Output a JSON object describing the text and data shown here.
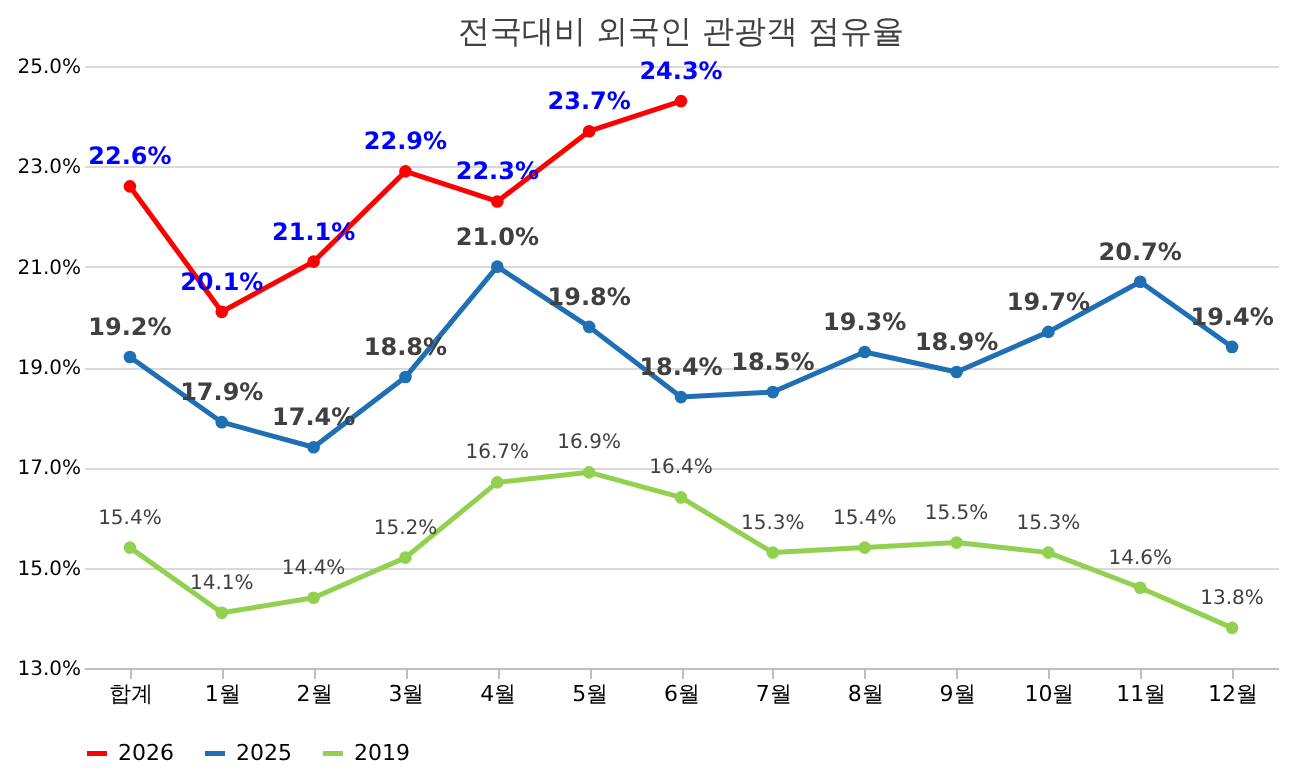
{
  "chart_data": {
    "type": "line",
    "title": "전국대비 외국인 관광객 점유율",
    "categories": [
      "합계",
      "1월",
      "2월",
      "3월",
      "4월",
      "5월",
      "6월",
      "7월",
      "8월",
      "9월",
      "10월",
      "11월",
      "12월"
    ],
    "series": [
      {
        "name": "2026",
        "color": "#ff0000",
        "values": [
          22.6,
          20.1,
          21.1,
          22.9,
          22.3,
          23.7,
          24.3,
          null,
          null,
          null,
          null,
          null,
          null
        ],
        "value_labels": [
          "22.6%",
          "20.1%",
          "21.1%",
          "22.9%",
          "22.3%",
          "23.7%",
          "24.3%",
          null,
          null,
          null,
          null,
          null,
          null
        ]
      },
      {
        "name": "2025",
        "color": "#1f6fb5",
        "values": [
          19.2,
          17.9,
          17.4,
          18.8,
          21.0,
          19.8,
          18.4,
          18.5,
          19.3,
          18.9,
          19.7,
          20.7,
          19.4
        ],
        "value_labels": [
          "19.2%",
          "17.9%",
          "17.4%",
          "18.8%",
          "21.0%",
          "19.8%",
          "18.4%",
          "18.5%",
          "19.3%",
          "18.9%",
          "19.7%",
          "20.7%",
          "19.4%"
        ]
      },
      {
        "name": "2019",
        "color": "#92d050",
        "values": [
          15.4,
          14.1,
          14.4,
          15.2,
          16.7,
          16.9,
          16.4,
          15.3,
          15.4,
          15.5,
          15.3,
          14.6,
          13.8
        ],
        "value_labels": [
          "15.4%",
          "14.1%",
          "14.4%",
          "15.2%",
          "16.7%",
          "16.9%",
          "16.4%",
          "15.3%",
          "15.4%",
          "15.5%",
          "15.3%",
          "14.6%",
          "13.8%"
        ]
      }
    ],
    "ylim": [
      13,
      25
    ],
    "yticks": [
      {
        "value": 13,
        "label": "13.0%"
      },
      {
        "value": 15,
        "label": "15.0%"
      },
      {
        "value": 17,
        "label": "17.0%"
      },
      {
        "value": 19,
        "label": "19.0%"
      },
      {
        "value": 21,
        "label": "21.0%"
      },
      {
        "value": 23,
        "label": "23.0%"
      },
      {
        "value": 25,
        "label": "25.0%"
      }
    ],
    "grid": "y",
    "legend": "bottom",
    "marker": "circle",
    "line_style": "solid"
  }
}
